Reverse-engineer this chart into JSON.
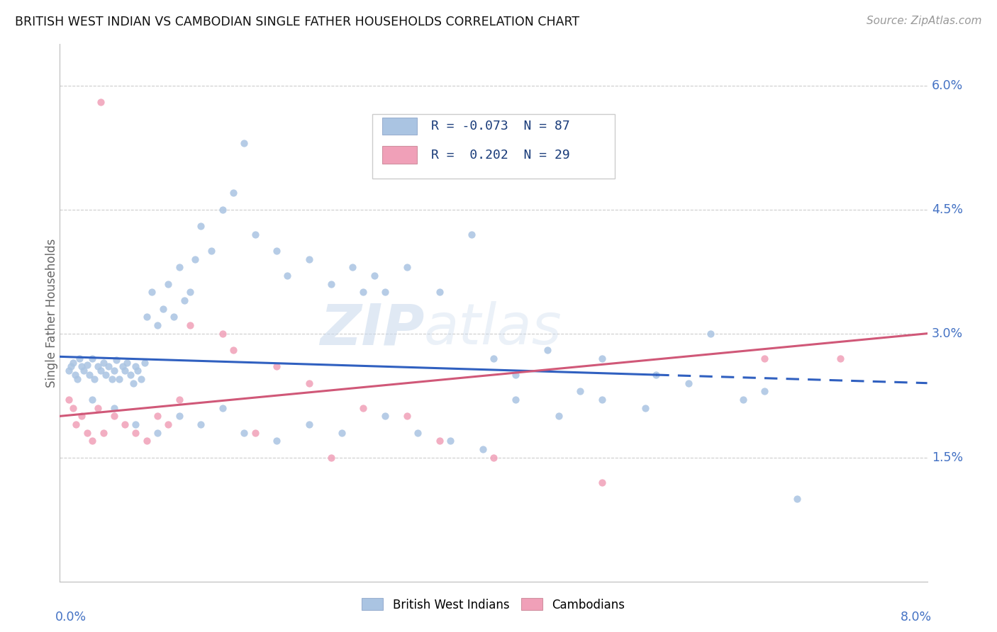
{
  "title": "BRITISH WEST INDIAN VS CAMBODIAN SINGLE FATHER HOUSEHOLDS CORRELATION CHART",
  "source": "Source: ZipAtlas.com",
  "ylabel": "Single Father Households",
  "xlim": [
    0.0,
    8.0
  ],
  "ylim": [
    0.0,
    6.5
  ],
  "ytick_vals": [
    1.5,
    3.0,
    4.5,
    6.0
  ],
  "ytick_labels": [
    "1.5%",
    "3.0%",
    "4.5%",
    "6.0%"
  ],
  "blue_color": "#aac4e2",
  "pink_color": "#f0a0b8",
  "blue_line_color": "#3060c0",
  "pink_line_color": "#d05878",
  "blue_scatter_x": [
    0.08,
    0.1,
    0.12,
    0.14,
    0.16,
    0.18,
    0.2,
    0.22,
    0.25,
    0.27,
    0.3,
    0.32,
    0.35,
    0.38,
    0.4,
    0.42,
    0.45,
    0.48,
    0.5,
    0.52,
    0.55,
    0.58,
    0.6,
    0.62,
    0.65,
    0.68,
    0.7,
    0.72,
    0.75,
    0.78,
    0.8,
    0.85,
    0.9,
    0.95,
    1.0,
    1.05,
    1.1,
    1.15,
    1.2,
    1.25,
    1.3,
    1.4,
    1.5,
    1.6,
    1.7,
    1.8,
    2.0,
    2.1,
    2.3,
    2.5,
    2.7,
    2.8,
    2.9,
    3.0,
    3.2,
    3.5,
    3.8,
    4.0,
    4.2,
    4.5,
    4.8,
    5.0,
    5.5,
    6.0,
    6.5,
    0.3,
    0.5,
    0.7,
    0.9,
    1.1,
    1.3,
    1.5,
    1.7,
    2.0,
    2.3,
    2.6,
    3.0,
    3.3,
    3.6,
    3.9,
    4.2,
    4.6,
    5.0,
    5.4,
    5.8,
    6.3,
    6.8
  ],
  "blue_scatter_y": [
    2.55,
    2.6,
    2.65,
    2.5,
    2.45,
    2.7,
    2.6,
    2.55,
    2.62,
    2.5,
    2.7,
    2.45,
    2.6,
    2.55,
    2.65,
    2.5,
    2.6,
    2.45,
    2.55,
    2.68,
    2.45,
    2.6,
    2.55,
    2.65,
    2.5,
    2.4,
    2.6,
    2.55,
    2.45,
    2.65,
    3.2,
    3.5,
    3.1,
    3.3,
    3.6,
    3.2,
    3.8,
    3.4,
    3.5,
    3.9,
    4.3,
    4.0,
    4.5,
    4.7,
    5.3,
    4.2,
    4.0,
    3.7,
    3.9,
    3.6,
    3.8,
    3.5,
    3.7,
    3.5,
    3.8,
    3.5,
    4.2,
    2.7,
    2.5,
    2.8,
    2.3,
    2.7,
    2.5,
    3.0,
    2.3,
    2.2,
    2.1,
    1.9,
    1.8,
    2.0,
    1.9,
    2.1,
    1.8,
    1.7,
    1.9,
    1.8,
    2.0,
    1.8,
    1.7,
    1.6,
    2.2,
    2.0,
    2.2,
    2.1,
    2.4,
    2.2,
    1.0
  ],
  "pink_scatter_x": [
    0.08,
    0.12,
    0.15,
    0.2,
    0.25,
    0.3,
    0.35,
    0.4,
    0.5,
    0.6,
    0.7,
    0.8,
    0.9,
    1.0,
    1.1,
    1.2,
    1.5,
    1.6,
    1.8,
    2.0,
    2.3,
    2.5,
    2.8,
    3.2,
    3.5,
    4.0,
    5.0,
    6.5,
    7.2
  ],
  "pink_scatter_y": [
    2.2,
    2.1,
    1.9,
    2.0,
    1.8,
    1.7,
    2.1,
    1.8,
    2.0,
    1.9,
    1.8,
    1.7,
    2.0,
    1.9,
    2.2,
    3.1,
    3.0,
    2.8,
    1.8,
    2.6,
    2.4,
    1.5,
    2.1,
    2.0,
    1.7,
    1.5,
    1.2,
    2.7,
    2.7
  ],
  "pink_top_x": 0.38,
  "pink_top_y": 5.8,
  "blue_line_x0": 0.0,
  "blue_line_y0": 2.72,
  "blue_line_x1": 5.5,
  "blue_line_y1": 2.5,
  "blue_line_dash_x0": 5.5,
  "blue_line_dash_y0": 2.5,
  "blue_line_dash_x1": 8.0,
  "blue_line_dash_y1": 2.4,
  "pink_line_x0": 0.0,
  "pink_line_y0": 2.0,
  "pink_line_x1": 8.0,
  "pink_line_y1": 3.0,
  "watermark_zip": "ZIP",
  "watermark_atlas": "atlas",
  "legend_r1_text": "R = -0.073  N = 87",
  "legend_r2_text": "R =  0.202  N = 29"
}
